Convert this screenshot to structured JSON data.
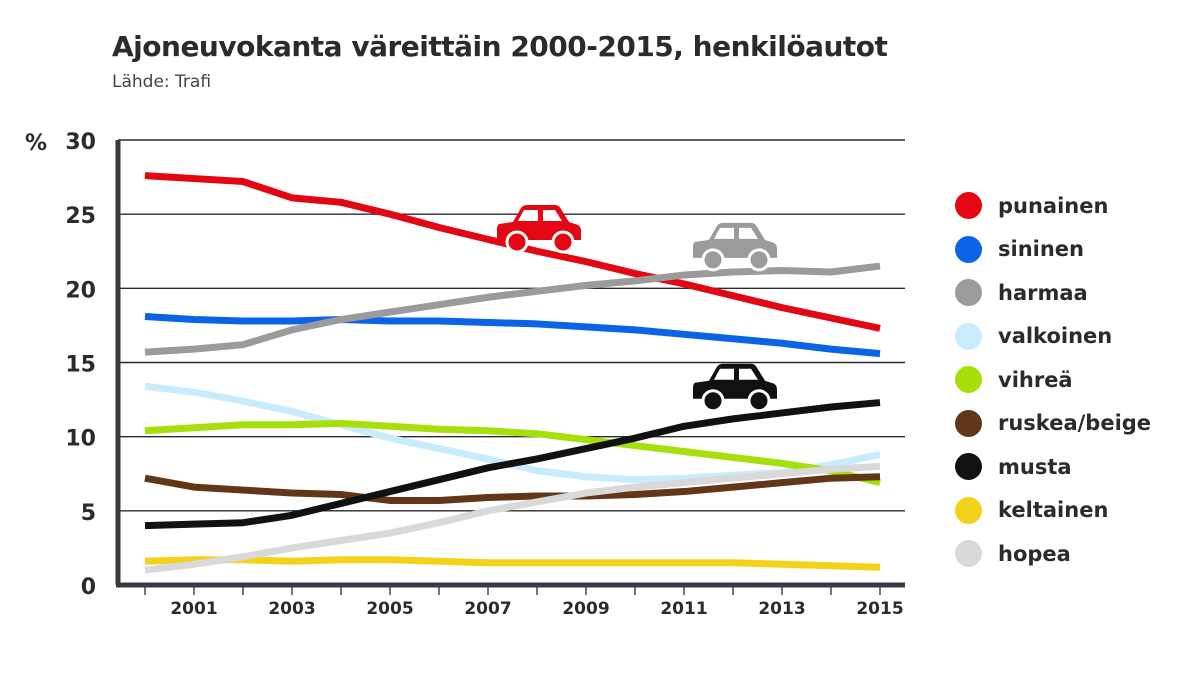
{
  "header": {
    "title": "Ajoneuvokanta väreittäin 2000-2015, henkilöautot",
    "source": "Lähde: Trafi"
  },
  "chart_data": {
    "type": "line",
    "title": "Ajoneuvokanta väreittäin 2000-2015, henkilöautot",
    "subtitle": "Lähde: Trafi",
    "ylabel": "%",
    "xlabel": "",
    "ylim": [
      0,
      30
    ],
    "xlim": [
      2000,
      2015
    ],
    "yticks": [
      0,
      5,
      10,
      15,
      20,
      25,
      30
    ],
    "xticks": [
      2001,
      2003,
      2005,
      2007,
      2009,
      2011,
      2013,
      2015
    ],
    "grid": "horizontal",
    "legend": "right",
    "x": [
      2000,
      2001,
      2002,
      2003,
      2004,
      2005,
      2006,
      2007,
      2008,
      2009,
      2010,
      2011,
      2012,
      2013,
      2014,
      2015
    ],
    "series": [
      {
        "name": "punainen",
        "color": "#e30613",
        "values": [
          27.6,
          27.4,
          27.2,
          26.1,
          25.8,
          25.0,
          24.1,
          23.3,
          22.5,
          21.8,
          21.0,
          20.3,
          19.5,
          18.7,
          18.0,
          17.3
        ]
      },
      {
        "name": "sininen",
        "color": "#0b63e5",
        "values": [
          18.1,
          17.9,
          17.8,
          17.8,
          17.9,
          17.8,
          17.8,
          17.7,
          17.6,
          17.4,
          17.2,
          16.9,
          16.6,
          16.3,
          15.9,
          15.6
        ]
      },
      {
        "name": "harmaa",
        "color": "#9b9b9b",
        "values": [
          15.7,
          15.9,
          16.2,
          17.2,
          17.9,
          18.4,
          18.9,
          19.4,
          19.8,
          20.2,
          20.5,
          20.9,
          21.1,
          21.2,
          21.1,
          21.5
        ]
      },
      {
        "name": "valkoinen",
        "color": "#c9ecfc",
        "values": [
          13.4,
          13.0,
          12.4,
          11.7,
          10.8,
          9.9,
          9.2,
          8.5,
          7.7,
          7.3,
          7.1,
          7.2,
          7.4,
          7.6,
          8.1,
          8.8
        ]
      },
      {
        "name": "vihreä",
        "color": "#a6e00c",
        "values": [
          10.4,
          10.6,
          10.8,
          10.8,
          10.9,
          10.7,
          10.5,
          10.4,
          10.2,
          9.8,
          9.4,
          9.0,
          8.6,
          8.2,
          7.7,
          6.9
        ]
      },
      {
        "name": "ruskea/beige",
        "color": "#623718",
        "values": [
          7.2,
          6.6,
          6.4,
          6.2,
          6.1,
          5.7,
          5.7,
          5.9,
          6.0,
          6.0,
          6.1,
          6.3,
          6.6,
          6.9,
          7.2,
          7.3
        ]
      },
      {
        "name": "musta",
        "color": "#111111",
        "values": [
          4.0,
          4.1,
          4.2,
          4.7,
          5.5,
          6.3,
          7.1,
          7.9,
          8.5,
          9.2,
          9.9,
          10.7,
          11.2,
          11.6,
          12.0,
          12.3
        ]
      },
      {
        "name": "keltainen",
        "color": "#f2d21b",
        "values": [
          1.6,
          1.7,
          1.7,
          1.6,
          1.7,
          1.7,
          1.6,
          1.5,
          1.5,
          1.5,
          1.5,
          1.5,
          1.5,
          1.4,
          1.3,
          1.2
        ]
      },
      {
        "name": "hopea",
        "color": "#d9d9d9",
        "values": [
          1.0,
          1.4,
          1.9,
          2.5,
          3.0,
          3.5,
          4.2,
          5.0,
          5.6,
          6.2,
          6.6,
          6.9,
          7.2,
          7.5,
          7.8,
          8.0
        ]
      }
    ],
    "icons": [
      {
        "name": "red-car-icon",
        "color": "#e30613",
        "x": 2008,
        "y": 24.2
      },
      {
        "name": "gray-car-icon",
        "color": "#9b9b9b",
        "x": 2012,
        "y": 23.0
      },
      {
        "name": "black-car-icon",
        "color": "#111111",
        "x": 2012,
        "y": 13.5
      }
    ]
  }
}
